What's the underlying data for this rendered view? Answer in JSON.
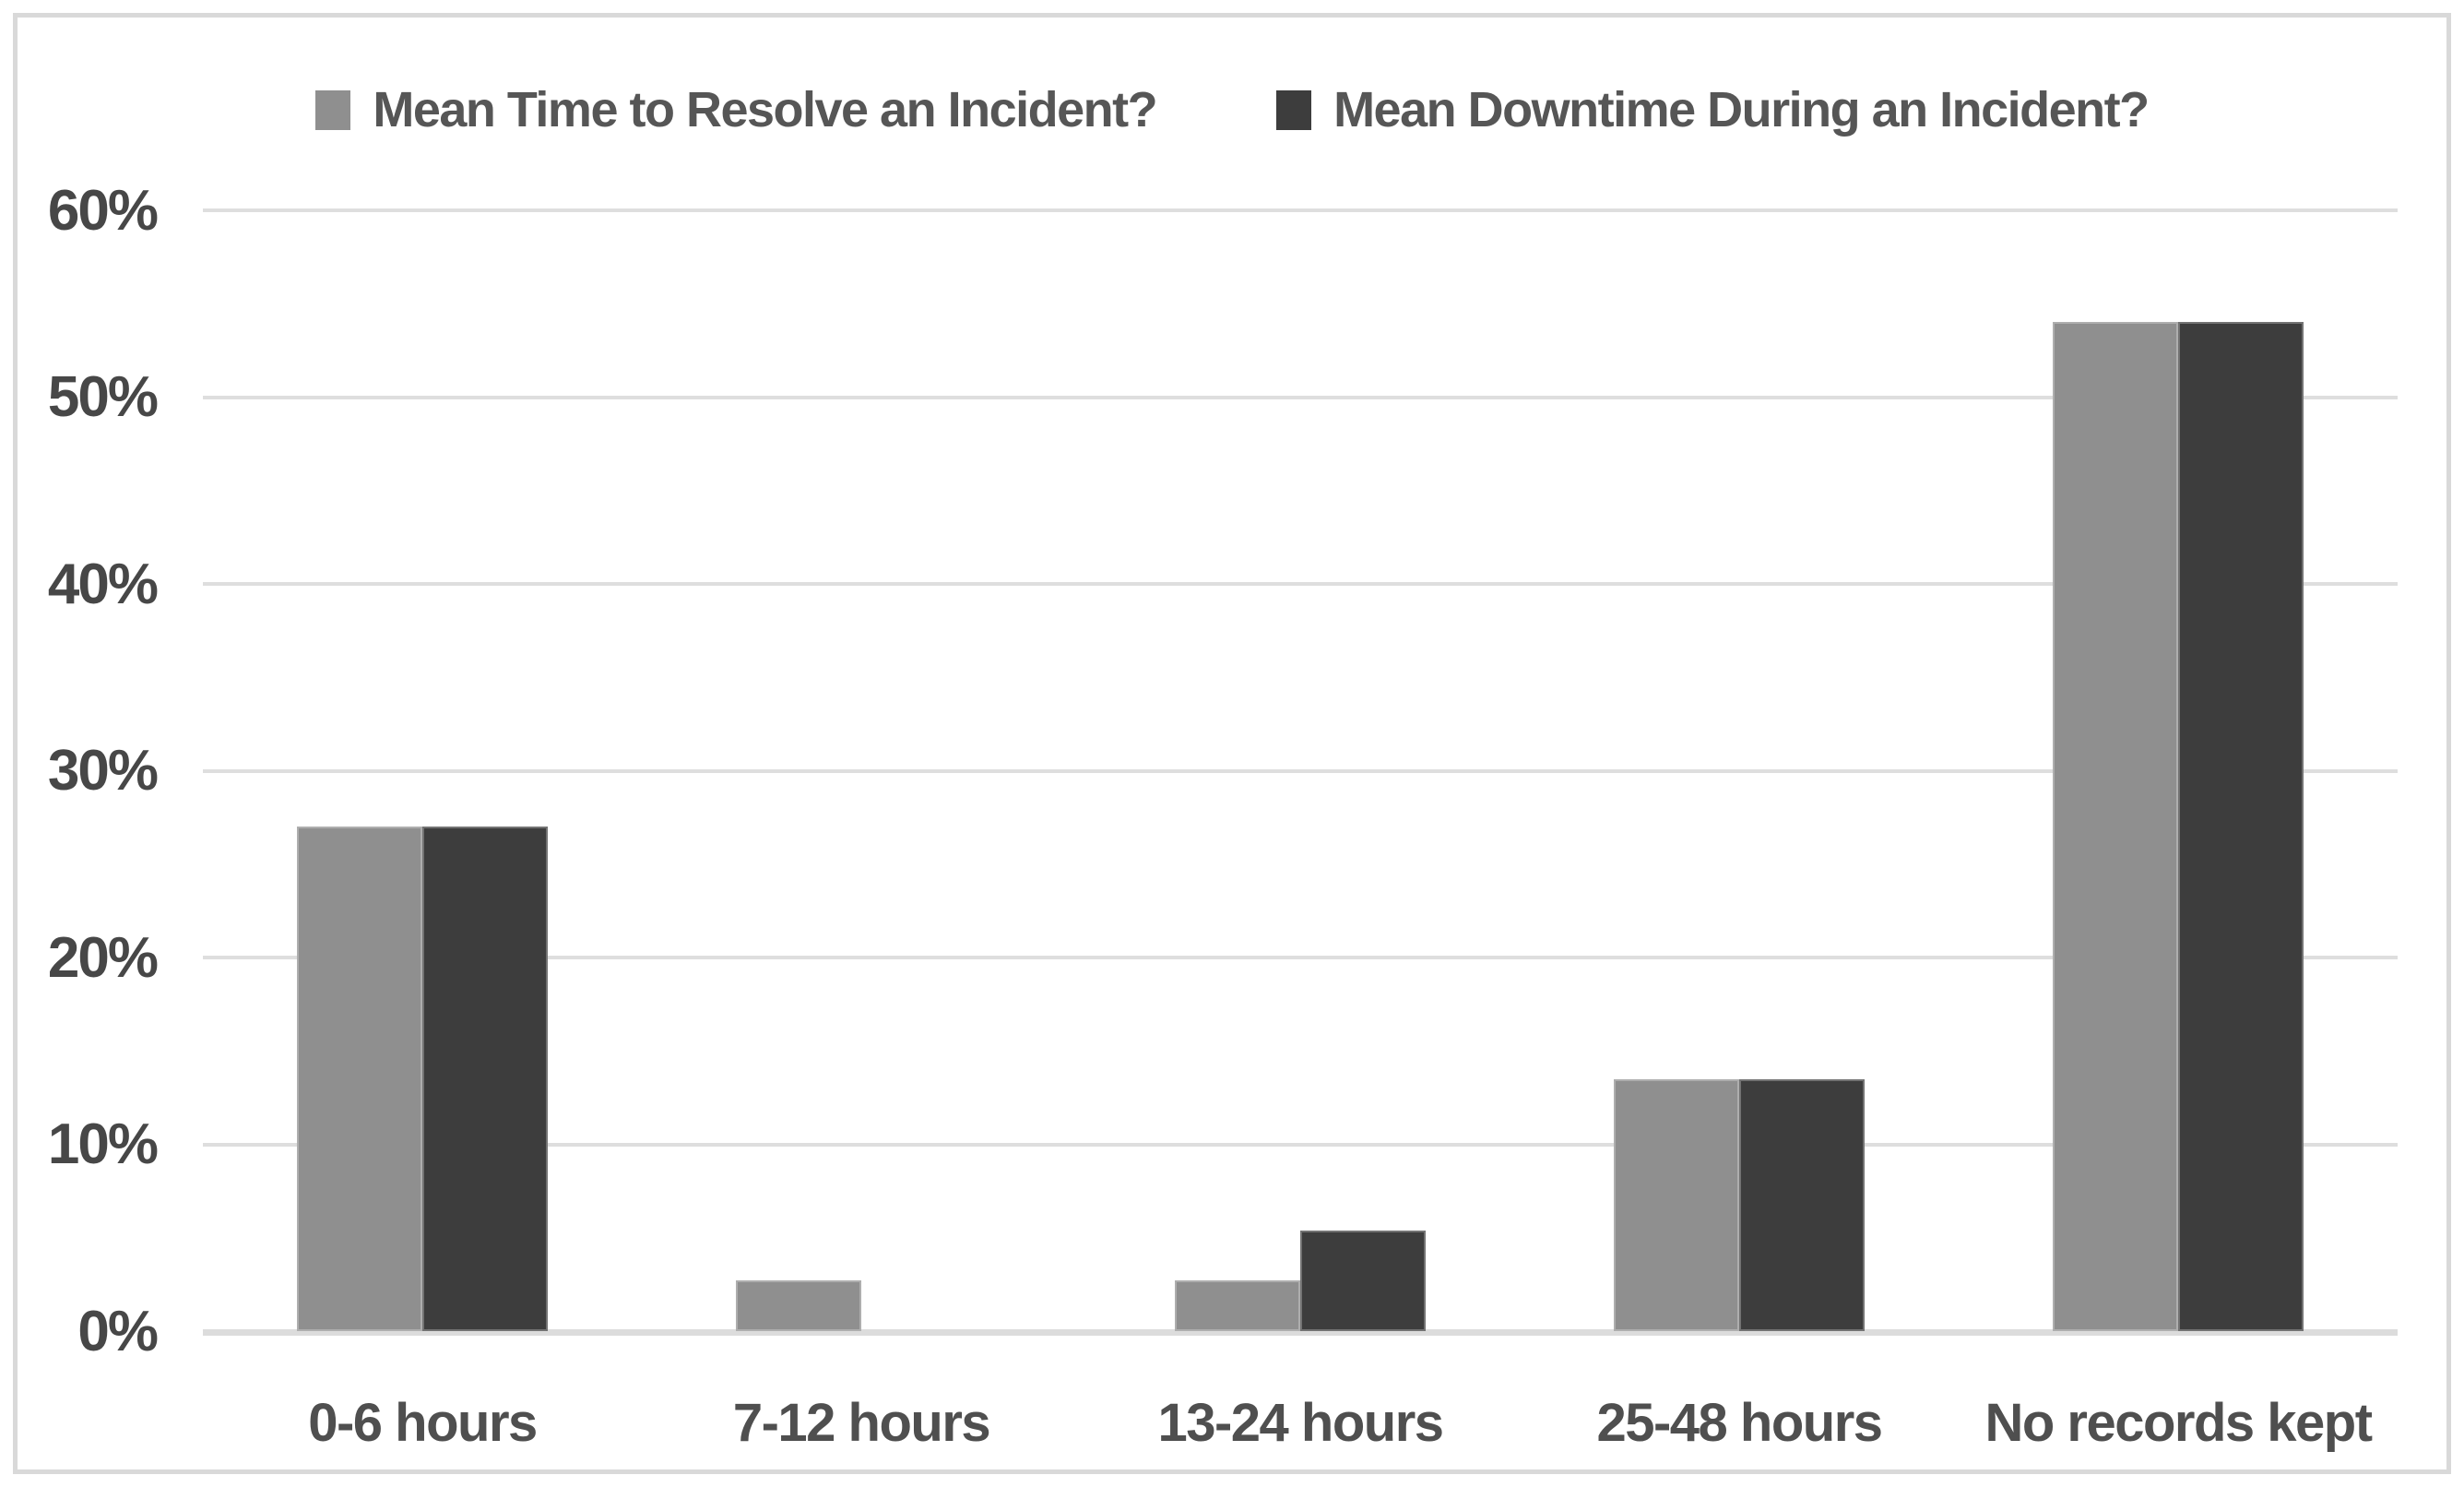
{
  "chart_data": {
    "type": "bar",
    "title": "",
    "categories": [
      "0-6 hours",
      "7-12 hours",
      "13-24 hours",
      "25-48 hours",
      "No records kept"
    ],
    "series": [
      {
        "name": "Mean Time to Resolve an Incident?",
        "color": "#8f8f8f",
        "values": [
          27,
          2.7,
          2.7,
          13.5,
          54
        ]
      },
      {
        "name": "Mean Downtime During an Incident?",
        "color": "#3d3d3d",
        "values": [
          27,
          0,
          5.4,
          13.5,
          54
        ]
      }
    ],
    "xlabel": "",
    "ylabel": "",
    "ylim": [
      0,
      60
    ],
    "ytick_step": 10,
    "yticks": [
      "0%",
      "10%",
      "20%",
      "30%",
      "40%",
      "50%",
      "60%"
    ],
    "grid": true,
    "legend_position": "top"
  },
  "colors": {
    "background": "#ffffff",
    "frame_border": "#d9d9d9",
    "gridline": "#dedede",
    "axis_line": "#dcdcdc",
    "tick_text": "#474747",
    "category_text": "#4f4f4f",
    "legend_text": "#565656",
    "series_1": "#8f8f8f",
    "series_2": "#3d3d3d"
  }
}
